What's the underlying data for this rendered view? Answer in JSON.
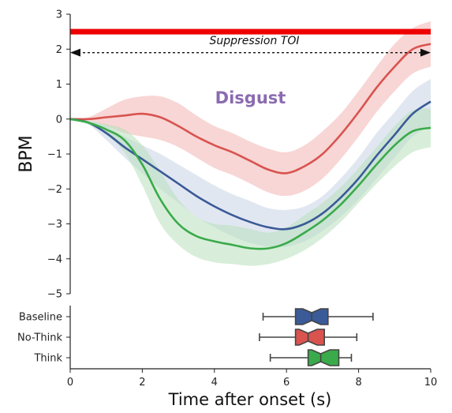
{
  "chart_data": [
    {
      "type": "line",
      "title": "Disgust",
      "title_color": "#8b6bb0",
      "ylabel": "BPM",
      "xlabel": "",
      "xlim": [
        0,
        10
      ],
      "ylim": [
        -5,
        3
      ],
      "yticks": [
        "3",
        "2",
        "1",
        "0",
        "−1",
        "−2",
        "−3",
        "−4",
        "−5"
      ],
      "ytick_values": [
        3,
        2,
        1,
        0,
        -1,
        -2,
        -3,
        -4,
        -5
      ],
      "toi_bar": {
        "value": 2.5,
        "from": 0,
        "to": 10,
        "color": "#ee0000"
      },
      "toi_arrow": {
        "label": "Suppression TOI",
        "value": 1.9,
        "from": 0,
        "to": 10
      },
      "x": [
        0,
        0.5,
        1,
        1.5,
        2,
        2.5,
        3,
        3.5,
        4,
        4.5,
        5,
        5.5,
        6,
        6.5,
        7,
        7.5,
        8,
        8.5,
        9,
        9.5,
        10
      ],
      "series": [
        {
          "color": "#d9534f",
          "band_color": "#f1b4b2",
          "values": [
            0,
            0,
            0.05,
            0.1,
            0.15,
            0.05,
            -0.2,
            -0.5,
            -0.75,
            -0.95,
            -1.2,
            -1.45,
            -1.55,
            -1.35,
            -1.0,
            -0.45,
            0.2,
            0.9,
            1.5,
            2.0,
            2.15
          ],
          "lower": [
            0,
            -0.05,
            -0.2,
            -0.4,
            -0.5,
            -0.6,
            -0.8,
            -1.1,
            -1.4,
            -1.6,
            -1.85,
            -2.1,
            -2.2,
            -2.05,
            -1.7,
            -1.15,
            -0.5,
            0.2,
            0.8,
            1.3,
            1.5
          ],
          "upper": [
            0,
            0.05,
            0.3,
            0.55,
            0.65,
            0.65,
            0.45,
            0.1,
            -0.2,
            -0.4,
            -0.65,
            -0.85,
            -0.95,
            -0.75,
            -0.35,
            0.15,
            0.8,
            1.5,
            2.15,
            2.6,
            2.8
          ]
        },
        {
          "color": "#3a5a98",
          "band_color": "#c9d3e6",
          "values": [
            0,
            -0.1,
            -0.4,
            -0.8,
            -1.15,
            -1.5,
            -1.85,
            -2.2,
            -2.5,
            -2.75,
            -2.95,
            -3.1,
            -3.15,
            -3.0,
            -2.7,
            -2.25,
            -1.7,
            -1.05,
            -0.45,
            0.15,
            0.5
          ],
          "lower": [
            0,
            -0.15,
            -0.6,
            -1.1,
            -1.55,
            -2.0,
            -2.4,
            -2.8,
            -3.1,
            -3.35,
            -3.55,
            -3.65,
            -3.65,
            -3.5,
            -3.2,
            -2.8,
            -2.3,
            -1.7,
            -1.1,
            -0.5,
            -0.2
          ],
          "upper": [
            0,
            -0.05,
            -0.2,
            -0.5,
            -0.75,
            -1.0,
            -1.3,
            -1.6,
            -1.9,
            -2.15,
            -2.35,
            -2.55,
            -2.6,
            -2.5,
            -2.2,
            -1.7,
            -1.1,
            -0.4,
            0.2,
            0.8,
            1.15
          ]
        },
        {
          "color": "#3aaa4a",
          "band_color": "#b8e0bc",
          "values": [
            0,
            -0.1,
            -0.3,
            -0.6,
            -1.3,
            -2.3,
            -3.0,
            -3.35,
            -3.5,
            -3.6,
            -3.7,
            -3.7,
            -3.55,
            -3.25,
            -2.9,
            -2.45,
            -1.9,
            -1.3,
            -0.75,
            -0.35,
            -0.25
          ],
          "lower": [
            0,
            -0.15,
            -0.45,
            -0.95,
            -1.9,
            -3.0,
            -3.6,
            -3.95,
            -4.1,
            -4.15,
            -4.2,
            -4.15,
            -4.0,
            -3.75,
            -3.4,
            -2.95,
            -2.4,
            -1.85,
            -1.35,
            -0.95,
            -0.8
          ],
          "upper": [
            0,
            -0.05,
            -0.15,
            -0.3,
            -0.75,
            -1.5,
            -2.3,
            -2.8,
            -3.0,
            -3.05,
            -3.15,
            -3.25,
            -3.1,
            -2.75,
            -2.4,
            -1.95,
            -1.4,
            -0.8,
            -0.2,
            0.25,
            0.3
          ]
        }
      ]
    },
    {
      "type": "box",
      "xlabel": "Time after onset (s)",
      "xlim": [
        0,
        10
      ],
      "xticks": [
        "0",
        "2",
        "4",
        "6",
        "8",
        "10"
      ],
      "xtick_values": [
        0,
        2,
        4,
        6,
        8,
        10
      ],
      "categories": [
        "Baseline",
        "No-Think",
        "Think"
      ],
      "boxes": [
        {
          "label": "Baseline",
          "color": "#3a5a98",
          "whisker_low": 5.35,
          "q1": 6.25,
          "median": 6.7,
          "q3": 7.15,
          "whisker_high": 8.4
        },
        {
          "label": "No-Think",
          "color": "#d9534f",
          "whisker_low": 5.25,
          "q1": 6.25,
          "median": 6.6,
          "q3": 7.05,
          "whisker_high": 7.95
        },
        {
          "label": "Think",
          "color": "#3aaa4a",
          "whisker_low": 5.55,
          "q1": 6.6,
          "median": 6.95,
          "q3": 7.45,
          "whisker_high": 7.8
        }
      ]
    }
  ]
}
